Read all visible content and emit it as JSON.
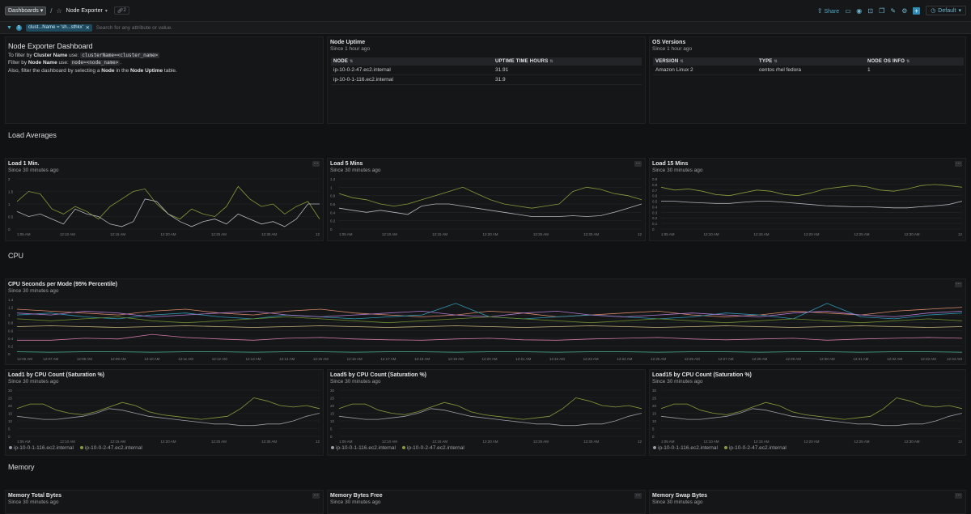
{
  "topbar": {
    "breadcrumb": "Dashboards",
    "title": "Node Exporter",
    "link_count": "2",
    "share": "Share",
    "default": "Default"
  },
  "filter": {
    "badge": "1",
    "chip": "clust...Name = 'sh...sthkx'",
    "placeholder": "Search for any attribute or value."
  },
  "sections": {
    "load": "Load Averages",
    "cpu": "CPU",
    "memory": "Memory"
  },
  "markdown": {
    "title": "Node Exporter Dashboard",
    "l1_a": "To filter by ",
    "l1_b": "Cluster Name",
    "l1_c": " use: ",
    "l1_code": "clusterName=<cluster_name>",
    "l2_a": "Filter by ",
    "l2_b": "Node Name",
    "l2_c": " use: ",
    "l2_code": "node=<node_name>",
    "l2_d": ".",
    "l3_a": "Also, filter the dashboard by selecting a ",
    "l3_b": "Node",
    "l3_c": " in the ",
    "l3_d": "Node Uptime",
    "l3_e": " table."
  },
  "uptime": {
    "title": "Node Uptime",
    "sub": "Since 1 hour ago",
    "headers": [
      "NODE",
      "UPTIME TIME HOURS"
    ],
    "rows": [
      [
        "ip-10-0-2-47.ec2.internal",
        "31.91"
      ],
      [
        "ip-10-0-1-116.ec2.internal",
        "31.9"
      ]
    ]
  },
  "os": {
    "title": "OS Versions",
    "sub": "Since 1 hour ago",
    "headers": [
      "VERSION",
      "TYPE",
      "NODE OS INFO"
    ],
    "rows": [
      [
        "Amazon Linux 2",
        "centos rhel fedora",
        "1"
      ]
    ]
  },
  "panels": {
    "load1": {
      "title": "Load 1 Min.",
      "sub": "Since 30 minutes ago"
    },
    "load5": {
      "title": "Load 5 Mins",
      "sub": "Since 30 minutes ago"
    },
    "load15": {
      "title": "Load 15 Mins",
      "sub": "Since 30 minutes ago"
    },
    "cpu": {
      "title": "CPU Seconds per Mode (95% Percentile)",
      "sub": "Since 30 minutes ago"
    },
    "sat1": {
      "title": "Load1 by CPU Count (Saturation %)",
      "sub": "Since 30 minutes ago"
    },
    "sat5": {
      "title": "Load5 by CPU Count (Saturation %)",
      "sub": "Since 30 minutes ago"
    },
    "sat15": {
      "title": "Load15 by CPU Count (Saturation %)",
      "sub": "Since 30 minutes ago"
    },
    "mem_total": {
      "title": "Memory Total Bytes",
      "sub": "Since 30 minutes ago"
    },
    "mem_free": {
      "title": "Memory Bytes Free",
      "sub": "Since 30 minutes ago"
    },
    "mem_swap": {
      "title": "Memory Swap Bytes",
      "sub": "Since 30 minutes ago"
    }
  },
  "legend": {
    "a": "ip-10-0-1-116.ec2.internal",
    "b": "ip-10-0-2-47.ec2.internal",
    "color_a": "#9a9ca6",
    "color_b": "#8a9a3c"
  },
  "chart_data": [
    {
      "id": "load1",
      "type": "line",
      "ylim": [
        0,
        2
      ],
      "yticks": [
        "2",
        "1.5",
        "1",
        "0.5",
        "0"
      ],
      "xticks": [
        "1:05 AM",
        "12:10 AM",
        "12:15 AM",
        "12:20 AM",
        "12:25 AM",
        "12:30 AM",
        "12"
      ],
      "series": [
        {
          "color": "#8a9a3c",
          "values": [
            1.1,
            1.5,
            1.4,
            0.8,
            0.6,
            0.9,
            0.7,
            0.4,
            0.9,
            1.2,
            1.5,
            1.6,
            1.0,
            0.6,
            0.4,
            0.8,
            0.6,
            0.5,
            0.9,
            1.7,
            1.2,
            0.9,
            1.0,
            0.6,
            0.9,
            1.1,
            0.4
          ]
        },
        {
          "color": "#b3b5bd",
          "values": [
            0.7,
            0.5,
            0.6,
            0.4,
            0.2,
            0.8,
            0.6,
            0.5,
            0.2,
            0.1,
            0.3,
            1.2,
            1.1,
            0.6,
            0.3,
            0.1,
            0.3,
            0.4,
            0.2,
            0.6,
            0.4,
            0.2,
            0.3,
            0.1,
            0.4,
            1.0,
            1.0
          ]
        }
      ]
    },
    {
      "id": "load5",
      "type": "line",
      "ylim": [
        0,
        1.2
      ],
      "yticks": [
        "1.2",
        "1",
        "0.8",
        "0.6",
        "0.4",
        "0.2",
        "0"
      ],
      "xticks": [
        "1:05 AM",
        "12:10 AM",
        "12:15 AM",
        "12:20 AM",
        "12:25 AM",
        "12:30 AM",
        "12"
      ],
      "series": [
        {
          "color": "#8a9a3c",
          "values": [
            0.85,
            0.75,
            0.7,
            0.6,
            0.55,
            0.6,
            0.7,
            0.8,
            0.9,
            1.0,
            0.85,
            0.7,
            0.6,
            0.55,
            0.5,
            0.55,
            0.6,
            0.9,
            1.0,
            0.95,
            0.85,
            0.8,
            0.7
          ]
        },
        {
          "color": "#b3b5bd",
          "values": [
            0.5,
            0.45,
            0.4,
            0.45,
            0.4,
            0.35,
            0.55,
            0.6,
            0.6,
            0.55,
            0.5,
            0.45,
            0.4,
            0.35,
            0.3,
            0.3,
            0.3,
            0.32,
            0.3,
            0.32,
            0.4,
            0.5,
            0.6
          ]
        }
      ]
    },
    {
      "id": "load15",
      "type": "line",
      "ylim": [
        0,
        0.9
      ],
      "yticks": [
        "0.9",
        "0.8",
        "0.7",
        "0.6",
        "0.5",
        "0.4",
        "0.3",
        "0.2",
        "0.1",
        "0"
      ],
      "xticks": [
        "1:05 AM",
        "12:10 AM",
        "12:15 AM",
        "12:20 AM",
        "12:25 AM",
        "12:30 AM",
        "12"
      ],
      "series": [
        {
          "color": "#8a9a3c",
          "values": [
            0.75,
            0.7,
            0.72,
            0.68,
            0.62,
            0.6,
            0.65,
            0.7,
            0.68,
            0.62,
            0.6,
            0.65,
            0.72,
            0.75,
            0.78,
            0.76,
            0.7,
            0.68,
            0.72,
            0.78,
            0.8,
            0.78,
            0.75
          ]
        },
        {
          "color": "#b3b5bd",
          "values": [
            0.5,
            0.5,
            0.48,
            0.47,
            0.46,
            0.46,
            0.48,
            0.5,
            0.5,
            0.48,
            0.46,
            0.44,
            0.42,
            0.41,
            0.4,
            0.4,
            0.39,
            0.38,
            0.38,
            0.4,
            0.42,
            0.44,
            0.5
          ]
        }
      ]
    },
    {
      "id": "cpu",
      "type": "line",
      "ylim": [
        0,
        1.4
      ],
      "yticks": [
        "1.4",
        "1.2",
        "1",
        "0.8",
        "0.6",
        "0.4",
        "0.2",
        "0"
      ],
      "xticks": [
        "12:05 AM",
        "12:07 AM",
        "12:08 AM",
        "12:09 AM",
        "12:10 AM",
        "12:11 AM",
        "12:12 AM",
        "12:13 AM",
        "12:14 AM",
        "12:15 AM",
        "12:16 AM",
        "12:17 AM",
        "12:18 AM",
        "12:19 AM",
        "12:20 AM",
        "12:21 AM",
        "12:22 AM",
        "12:23 AM",
        "12:24 AM",
        "12:25 AM",
        "12:26 AM",
        "12:27 AM",
        "12:28 AM",
        "12:29 AM",
        "12:30 AM",
        "12:31 AM",
        "12:32 AM",
        "12:33 AM",
        "12:34 AM"
      ],
      "series": [
        {
          "color": "#d98a6a",
          "values": [
            1.15,
            1.1,
            1.05,
            1.0,
            1.1,
            1.15,
            1.05,
            1.0,
            1.1,
            1.15,
            1.05,
            1.0,
            0.95,
            1.0,
            1.1,
            1.05,
            0.95,
            1.0,
            1.05,
            1.1,
            1.0,
            0.95,
            1.0,
            1.1,
            1.05,
            1.0,
            1.1,
            1.15,
            1.2
          ]
        },
        {
          "color": "#2f9ab8",
          "values": [
            1.0,
            1.05,
            0.95,
            0.9,
            1.0,
            1.05,
            0.95,
            0.9,
            1.0,
            0.95,
            0.9,
            0.95,
            1.0,
            1.3,
            0.95,
            0.9,
            0.95,
            1.0,
            0.95,
            0.9,
            0.95,
            1.05,
            1.0,
            0.9,
            1.3,
            0.95,
            0.9,
            1.0,
            1.05
          ]
        },
        {
          "color": "#b07ad0",
          "values": [
            1.05,
            1.0,
            1.1,
            1.05,
            0.95,
            1.0,
            1.05,
            1.1,
            1.0,
            0.95,
            1.0,
            1.05,
            1.1,
            1.0,
            0.95,
            1.05,
            1.1,
            1.0,
            0.95,
            1.0,
            1.05,
            1.0,
            0.95,
            1.05,
            1.1,
            1.0,
            0.95,
            1.05,
            1.1
          ]
        },
        {
          "color": "#6a8a2c",
          "values": [
            0.9,
            0.85,
            0.9,
            0.95,
            0.85,
            0.8,
            0.85,
            0.9,
            0.95,
            0.9,
            0.85,
            0.8,
            0.85,
            0.9,
            0.95,
            0.9,
            0.85,
            0.8,
            0.85,
            0.9,
            0.85,
            0.8,
            0.85,
            0.9,
            0.85,
            0.8,
            0.85,
            0.9,
            0.85
          ]
        },
        {
          "color": "#d077a8",
          "values": [
            0.35,
            0.35,
            0.4,
            0.38,
            0.5,
            0.42,
            0.38,
            0.35,
            0.4,
            0.42,
            0.38,
            0.36,
            0.35,
            0.38,
            0.4,
            0.36,
            0.35,
            0.38,
            0.4,
            0.42,
            0.38,
            0.36,
            0.38,
            0.4,
            0.35,
            0.38,
            0.4,
            0.42,
            0.4
          ]
        },
        {
          "color": "#c9b27a",
          "values": [
            0.7,
            0.72,
            0.7,
            0.68,
            0.7,
            0.72,
            0.7,
            0.68,
            0.7,
            0.72,
            0.7,
            0.68,
            0.7,
            0.72,
            0.7,
            0.68,
            0.7,
            0.72,
            0.7,
            0.68,
            0.7,
            0.72,
            0.7,
            0.68,
            0.7,
            0.72,
            0.7,
            0.68,
            0.7
          ]
        },
        {
          "color": "#4fb89a",
          "values": [
            0.05,
            0.04,
            0.05,
            0.05,
            0.04,
            0.05,
            0.05,
            0.04,
            0.05,
            0.05,
            0.04,
            0.05,
            0.05,
            0.04,
            0.05,
            0.05,
            0.04,
            0.05,
            0.05,
            0.04,
            0.05,
            0.05,
            0.04,
            0.05,
            0.05,
            0.04,
            0.05,
            0.05,
            0.04
          ]
        }
      ]
    },
    {
      "id": "sat1",
      "type": "line",
      "ylim": [
        0,
        30
      ],
      "yticks": [
        "30",
        "25",
        "20",
        "15",
        "10",
        "5",
        "0"
      ],
      "xticks": [
        "1:05 AM",
        "12:10 AM",
        "12:15 AM",
        "12:20 AM",
        "12:25 AM",
        "12:30 AM",
        "12"
      ],
      "series": [
        {
          "color": "#8a9a3c",
          "values": [
            18,
            21,
            21,
            17,
            15,
            14,
            16,
            19,
            22,
            20,
            16,
            14,
            13,
            12,
            11,
            12,
            13,
            18,
            25,
            23,
            20,
            19,
            20,
            18
          ]
        },
        {
          "color": "#9a9ca6",
          "values": [
            13,
            12,
            11,
            11,
            12,
            13,
            15,
            18,
            17,
            15,
            13,
            12,
            11,
            10,
            9,
            8,
            8,
            7,
            7,
            8,
            8,
            10,
            13,
            15
          ]
        }
      ]
    },
    {
      "id": "sat5",
      "type": "line",
      "ylim": [
        0,
        30
      ],
      "yticks": [
        "30",
        "25",
        "20",
        "15",
        "10",
        "5",
        "0"
      ],
      "xticks": [
        "1:05 AM",
        "12:10 AM",
        "12:15 AM",
        "12:20 AM",
        "12:25 AM",
        "12:30 AM",
        "12"
      ],
      "series": [
        {
          "color": "#8a9a3c",
          "values": [
            18,
            21,
            21,
            17,
            15,
            14,
            16,
            19,
            22,
            20,
            16,
            14,
            13,
            12,
            11,
            12,
            13,
            18,
            25,
            23,
            20,
            19,
            20,
            18
          ]
        },
        {
          "color": "#9a9ca6",
          "values": [
            13,
            12,
            11,
            11,
            12,
            13,
            15,
            18,
            17,
            15,
            13,
            12,
            11,
            10,
            9,
            8,
            8,
            7,
            7,
            8,
            8,
            10,
            13,
            15
          ]
        }
      ]
    },
    {
      "id": "sat15",
      "type": "line",
      "ylim": [
        0,
        30
      ],
      "yticks": [
        "30",
        "25",
        "20",
        "15",
        "10",
        "5",
        "0"
      ],
      "xticks": [
        "1:05 AM",
        "12:10 AM",
        "12:15 AM",
        "12:20 AM",
        "12:25 AM",
        "12:30 AM",
        "12"
      ],
      "series": [
        {
          "color": "#8a9a3c",
          "values": [
            18,
            21,
            21,
            17,
            15,
            14,
            16,
            19,
            22,
            20,
            16,
            14,
            13,
            12,
            11,
            12,
            13,
            18,
            25,
            23,
            20,
            19,
            20,
            18
          ]
        },
        {
          "color": "#9a9ca6",
          "values": [
            13,
            12,
            11,
            11,
            12,
            13,
            15,
            18,
            17,
            15,
            13,
            12,
            11,
            10,
            9,
            8,
            8,
            7,
            7,
            8,
            8,
            10,
            13,
            15
          ]
        }
      ]
    }
  ]
}
